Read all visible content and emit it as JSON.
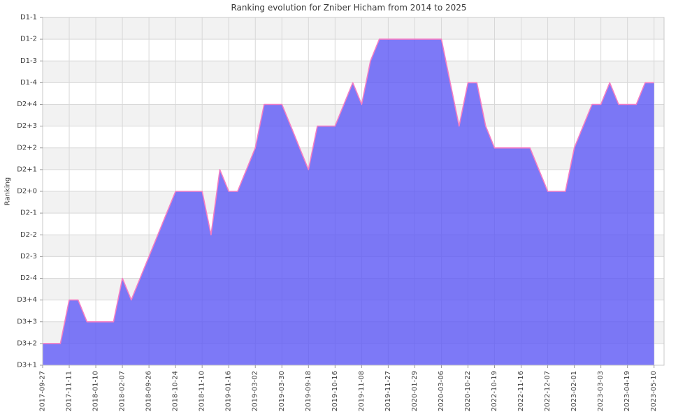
{
  "chart_data": {
    "type": "area",
    "title": "Ranking evolution for Zniber Hicham from 2014 to 2025",
    "ylabel": "Ranking",
    "y_levels_bottom_to_top": [
      "D3+1",
      "D3+2",
      "D3+3",
      "D3+4",
      "D2-4",
      "D2-3",
      "D2-2",
      "D2-1",
      "D2+0",
      "D2+1",
      "D2+2",
      "D2+3",
      "D2+4",
      "D1-4",
      "D1-3",
      "D1-2",
      "D1-1"
    ],
    "x_tick_labels": [
      "2017-09-27",
      "2017-11-11",
      "2018-01-10",
      "2018-02-07",
      "2018-09-26",
      "2018-10-24",
      "2018-11-10",
      "2019-01-16",
      "2019-03-02",
      "2019-03-30",
      "2019-09-18",
      "2019-10-16",
      "2019-11-08",
      "2019-11-27",
      "2020-01-29",
      "2020-03-06",
      "2020-10-22",
      "2022-10-19",
      "2022-11-16",
      "2022-12-07",
      "2023-02-01",
      "2023-03-03",
      "2023-04-19",
      "2023-05-10"
    ],
    "points_per_tick": 3,
    "values": [
      1,
      1,
      1,
      3,
      3,
      2,
      2,
      2,
      2,
      4,
      3,
      4,
      5,
      6,
      7,
      8,
      8,
      8,
      8,
      6,
      9,
      8,
      8,
      9,
      10,
      12,
      12,
      12,
      11,
      10,
      9,
      11,
      11,
      11,
      12,
      13,
      12,
      14,
      15,
      15,
      15,
      15,
      15,
      15,
      15,
      15,
      13,
      11,
      13,
      13,
      11,
      10,
      10,
      10,
      10,
      10,
      9,
      8,
      8,
      8,
      10,
      11,
      12,
      12,
      13,
      12,
      12,
      12,
      13,
      13
    ],
    "grid": true,
    "legend": false,
    "colors": {
      "fill": "rgba(93,88,245,0.8)",
      "line": "#f47ec4",
      "band_gray": "#f2f2f2",
      "band_white": "#ffffff",
      "grid": "#d8d8d8",
      "border": "#c9c9c9",
      "tick_mark": "#9a9a9a",
      "tick_text": "#3d3d3d",
      "title_text": "#3a3a3a"
    }
  }
}
